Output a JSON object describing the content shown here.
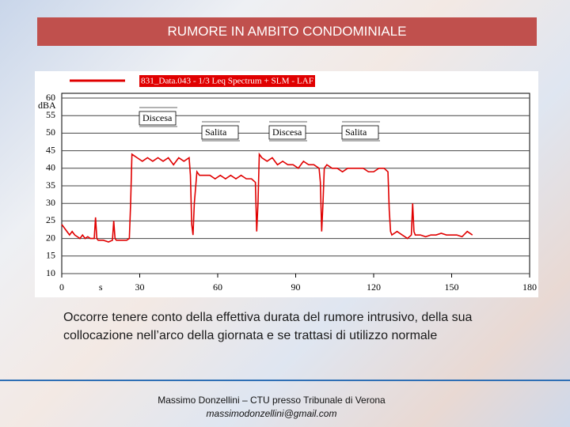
{
  "header": {
    "title": "RUMORE IN AMBITO CONDOMINIALE"
  },
  "chart_data": {
    "type": "line",
    "legend": "831_Data.043 - 1/3 Leq Spectrum + SLM - LAF",
    "ylabel": "dBA",
    "xlabel": "s",
    "annotations": [
      "Discesa",
      "Salita",
      "Discesa",
      "Salita"
    ],
    "x": [
      0,
      1,
      2,
      3,
      4,
      5,
      6,
      7,
      8,
      9,
      10,
      11,
      12,
      12.5,
      13,
      13.5,
      14,
      16,
      18,
      19.5,
      20,
      20.5,
      21,
      23,
      25,
      26,
      26.5,
      27,
      29,
      31,
      33,
      35,
      37,
      39,
      41,
      43,
      45,
      47,
      49,
      49.5,
      50,
      50.5,
      51,
      52,
      53,
      55,
      57,
      59,
      61,
      63,
      65,
      67,
      69,
      71,
      73,
      74.5,
      75,
      75.5,
      76,
      77,
      79,
      81,
      83,
      85,
      87,
      89,
      91,
      93,
      95,
      97,
      99,
      99.5,
      100,
      100.5,
      101,
      102,
      104,
      106,
      108,
      110,
      112,
      114,
      116,
      118,
      120,
      122,
      124,
      125.5,
      126,
      126.5,
      127,
      129,
      131,
      133,
      134.5,
      135,
      135.5,
      136,
      138,
      140,
      142,
      144,
      146,
      148,
      150,
      152,
      154,
      156,
      158
    ],
    "series": [
      {
        "name": "LAF",
        "color": "#e00000",
        "values": [
          24,
          23,
          22,
          21,
          22,
          21,
          20.5,
          20,
          21,
          20,
          20.5,
          20,
          20,
          20,
          26,
          20,
          19.5,
          19.5,
          19,
          19.5,
          25,
          20,
          19.5,
          19.5,
          19.5,
          20,
          30,
          44,
          43,
          42,
          43,
          42,
          43,
          42,
          43,
          41,
          43,
          42,
          43,
          38,
          24,
          21,
          30,
          39,
          38,
          38,
          38,
          37,
          38,
          37,
          38,
          37,
          38,
          37,
          37,
          36,
          22,
          30,
          44,
          43,
          42,
          43,
          41,
          42,
          41,
          41,
          40,
          42,
          41,
          41,
          40,
          36,
          22,
          30,
          40,
          41,
          40,
          40,
          39,
          40,
          40,
          40,
          40,
          39,
          39,
          40,
          40,
          39,
          28,
          22,
          21,
          22,
          21,
          20,
          21,
          30,
          22,
          21,
          21,
          20.5,
          21,
          21,
          21.5,
          21,
          21,
          21,
          20.5,
          22,
          21
        ]
      }
    ],
    "xlim": [
      0,
      180
    ],
    "xticks": [
      0,
      30,
      60,
      90,
      120,
      150,
      180
    ],
    "ylim": [
      10,
      60
    ],
    "yticks": [
      10,
      15,
      20,
      25,
      30,
      35,
      40,
      45,
      50,
      55,
      60
    ],
    "grid": true
  },
  "body": "Occorre tenere conto della effettiva durata del rumore intrusivo, della sua collocazione nell’arco della giornata e se trattasi di utilizzo normale",
  "footer": {
    "author": "Massimo Donzellini – CTU presso Tribunale di Verona",
    "email": "massimodonzellini@gmail.com"
  }
}
